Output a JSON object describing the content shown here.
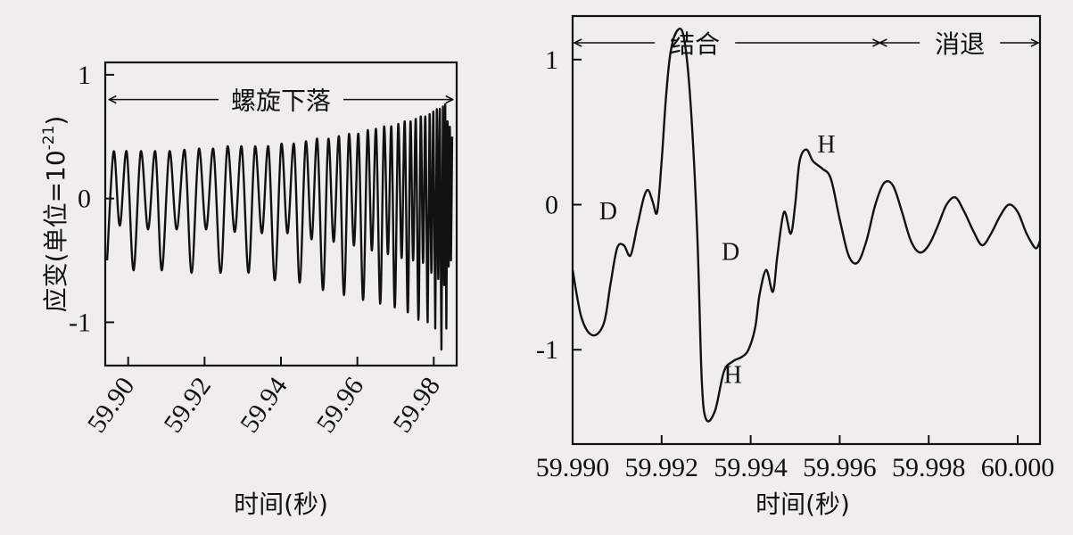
{
  "chart_data": [
    {
      "type": "line",
      "ylabel_main": "应变",
      "ylabel_unit_prefix": "(单位=10",
      "ylabel_unit_exp": "-21",
      "ylabel_unit_suffix": ")",
      "xlabel": "时间(秒)",
      "xlim": [
        59.894,
        59.986
      ],
      "ylim": [
        -1.35,
        1.1
      ],
      "x_ticks": [
        "59.90",
        "59.92",
        "59.94",
        "59.96",
        "59.98"
      ],
      "x_tick_values": [
        59.9,
        59.92,
        59.94,
        59.96,
        59.98
      ],
      "y_ticks": [
        "1",
        "0",
        "-1"
      ],
      "y_tick_values": [
        1,
        0,
        -1
      ],
      "annotations": [
        {
          "text": "螺旋下落",
          "x_start": 59.895,
          "x_end": 59.985,
          "y": 0.8
        }
      ],
      "series": [
        {
          "x": [
            59.8945,
            59.8962,
            59.8978,
            59.8996,
            59.9014,
            59.9033,
            59.9052,
            59.9071,
            59.9088,
            59.9108,
            59.9127,
            59.9148,
            59.9166,
            59.9185,
            59.9204,
            59.9223,
            59.9242,
            59.926,
            59.9279,
            59.9297,
            59.9315,
            59.9332,
            59.935,
            59.9367,
            59.9384,
            59.9401,
            59.9417,
            59.9434,
            59.9449,
            59.9465,
            59.948,
            59.9495,
            59.951,
            59.9524,
            59.9538,
            59.9552,
            59.9565,
            59.9578,
            59.9591,
            59.9603,
            59.9615,
            59.9627,
            59.9638,
            59.9649,
            59.966,
            59.967,
            59.968,
            59.9689,
            59.9698,
            59.9707,
            59.9716,
            59.9724,
            59.9732,
            59.9739,
            59.9746,
            59.9753,
            59.976,
            59.9766,
            59.9772,
            59.9778,
            59.9784,
            59.9789,
            59.9794,
            59.9799,
            59.9804,
            59.9808,
            59.9812,
            59.9816,
            59.982,
            59.9824,
            59.9827,
            59.983,
            59.9833,
            59.9836,
            59.9839,
            59.9842,
            59.9845,
            59.9848
          ],
          "y": [
            -0.5,
            0.38,
            -0.22,
            0.38,
            -0.58,
            0.38,
            -0.25,
            0.38,
            -0.58,
            0.38,
            -0.25,
            0.39,
            -0.6,
            0.4,
            -0.25,
            0.4,
            -0.6,
            0.42,
            -0.27,
            0.42,
            -0.6,
            0.42,
            -0.28,
            0.42,
            -0.66,
            0.44,
            -0.28,
            0.44,
            -0.68,
            0.46,
            -0.33,
            0.48,
            -0.74,
            0.48,
            -0.35,
            0.5,
            -0.78,
            0.52,
            -0.38,
            0.52,
            -0.82,
            0.55,
            -0.42,
            0.56,
            -0.85,
            0.58,
            -0.45,
            0.58,
            -0.88,
            0.6,
            -0.48,
            0.62,
            -0.92,
            0.62,
            -0.5,
            0.64,
            -0.98,
            0.66,
            -0.52,
            0.66,
            -1.0,
            0.68,
            -0.6,
            0.7,
            -1.05,
            0.72,
            -0.65,
            0.72,
            -1.22,
            0.74,
            -0.7,
            0.76,
            -1.05,
            0.62,
            -0.55,
            0.58,
            -0.5,
            0.5
          ]
        }
      ]
    },
    {
      "type": "line",
      "xlabel": "时间(秒)",
      "xlim": [
        59.99,
        60.0005
      ],
      "ylim": [
        -1.65,
        1.3
      ],
      "x_ticks": [
        "59.990",
        "59.992",
        "59.994",
        "59.996",
        "59.998",
        "60.000"
      ],
      "x_tick_values": [
        59.99,
        59.992,
        59.994,
        59.996,
        59.998,
        60.0
      ],
      "y_ticks": [
        "1",
        "0",
        "-1"
      ],
      "y_tick_values": [
        1,
        0,
        -1
      ],
      "annotations": [
        {
          "text": "结合",
          "x_start": 59.99,
          "x_end": 59.9969
        },
        {
          "text": "消退",
          "x_start": 59.9969,
          "x_end": 60.0005
        },
        {
          "text": "D",
          "x": 59.9908,
          "y": -0.1
        },
        {
          "text": "D",
          "x": 59.99355,
          "y": -0.38
        },
        {
          "text": "H",
          "x": 59.9936,
          "y": -1.23
        },
        {
          "text": "H",
          "x": 59.9957,
          "y": 0.36
        }
      ],
      "series": [
        {
          "x": [
            59.99,
            59.9902,
            59.99045,
            59.9907,
            59.99085,
            59.991,
            59.99115,
            59.9913,
            59.99145,
            59.9916,
            59.9917,
            59.9918,
            59.9919,
            59.992,
            59.9921,
            59.9922,
            59.99235,
            59.9925,
            59.99265,
            59.9928,
            59.9929,
            59.993,
            59.9932,
            59.9934,
            59.9936,
            59.9938,
            59.99395,
            59.9941,
            59.9942,
            59.99435,
            59.9945,
            59.9946,
            59.99475,
            59.9949,
            59.995,
            59.9951,
            59.99525,
            59.9954,
            59.9956,
            59.9958,
            59.996,
            59.9962,
            59.9964,
            59.9966,
            59.9968,
            59.997,
            59.9972,
            59.9974,
            59.9976,
            59.9978,
            59.998,
            59.9982,
            59.9984,
            59.9986,
            59.9988,
            59.999,
            59.9992,
            59.9994,
            59.9996,
            59.9998,
            60.0,
            60.0002,
            60.0004,
            60.0005
          ],
          "y": [
            -0.45,
            -0.78,
            -0.9,
            -0.82,
            -0.55,
            -0.3,
            -0.28,
            -0.35,
            -0.15,
            0.05,
            0.1,
            0.02,
            -0.05,
            0.3,
            0.75,
            1.05,
            1.2,
            1.15,
            0.7,
            -0.2,
            -1.2,
            -1.48,
            -1.42,
            -1.15,
            -1.08,
            -1.05,
            -1.0,
            -0.85,
            -0.62,
            -0.45,
            -0.6,
            -0.35,
            -0.05,
            -0.2,
            0.0,
            0.3,
            0.38,
            0.3,
            0.25,
            0.18,
            -0.1,
            -0.35,
            -0.4,
            -0.25,
            0.0,
            0.15,
            0.13,
            -0.05,
            -0.25,
            -0.33,
            -0.28,
            -0.15,
            0.0,
            0.05,
            -0.05,
            -0.18,
            -0.28,
            -0.2,
            -0.08,
            0.0,
            -0.05,
            -0.2,
            -0.3,
            -0.25
          ]
        }
      ]
    }
  ]
}
